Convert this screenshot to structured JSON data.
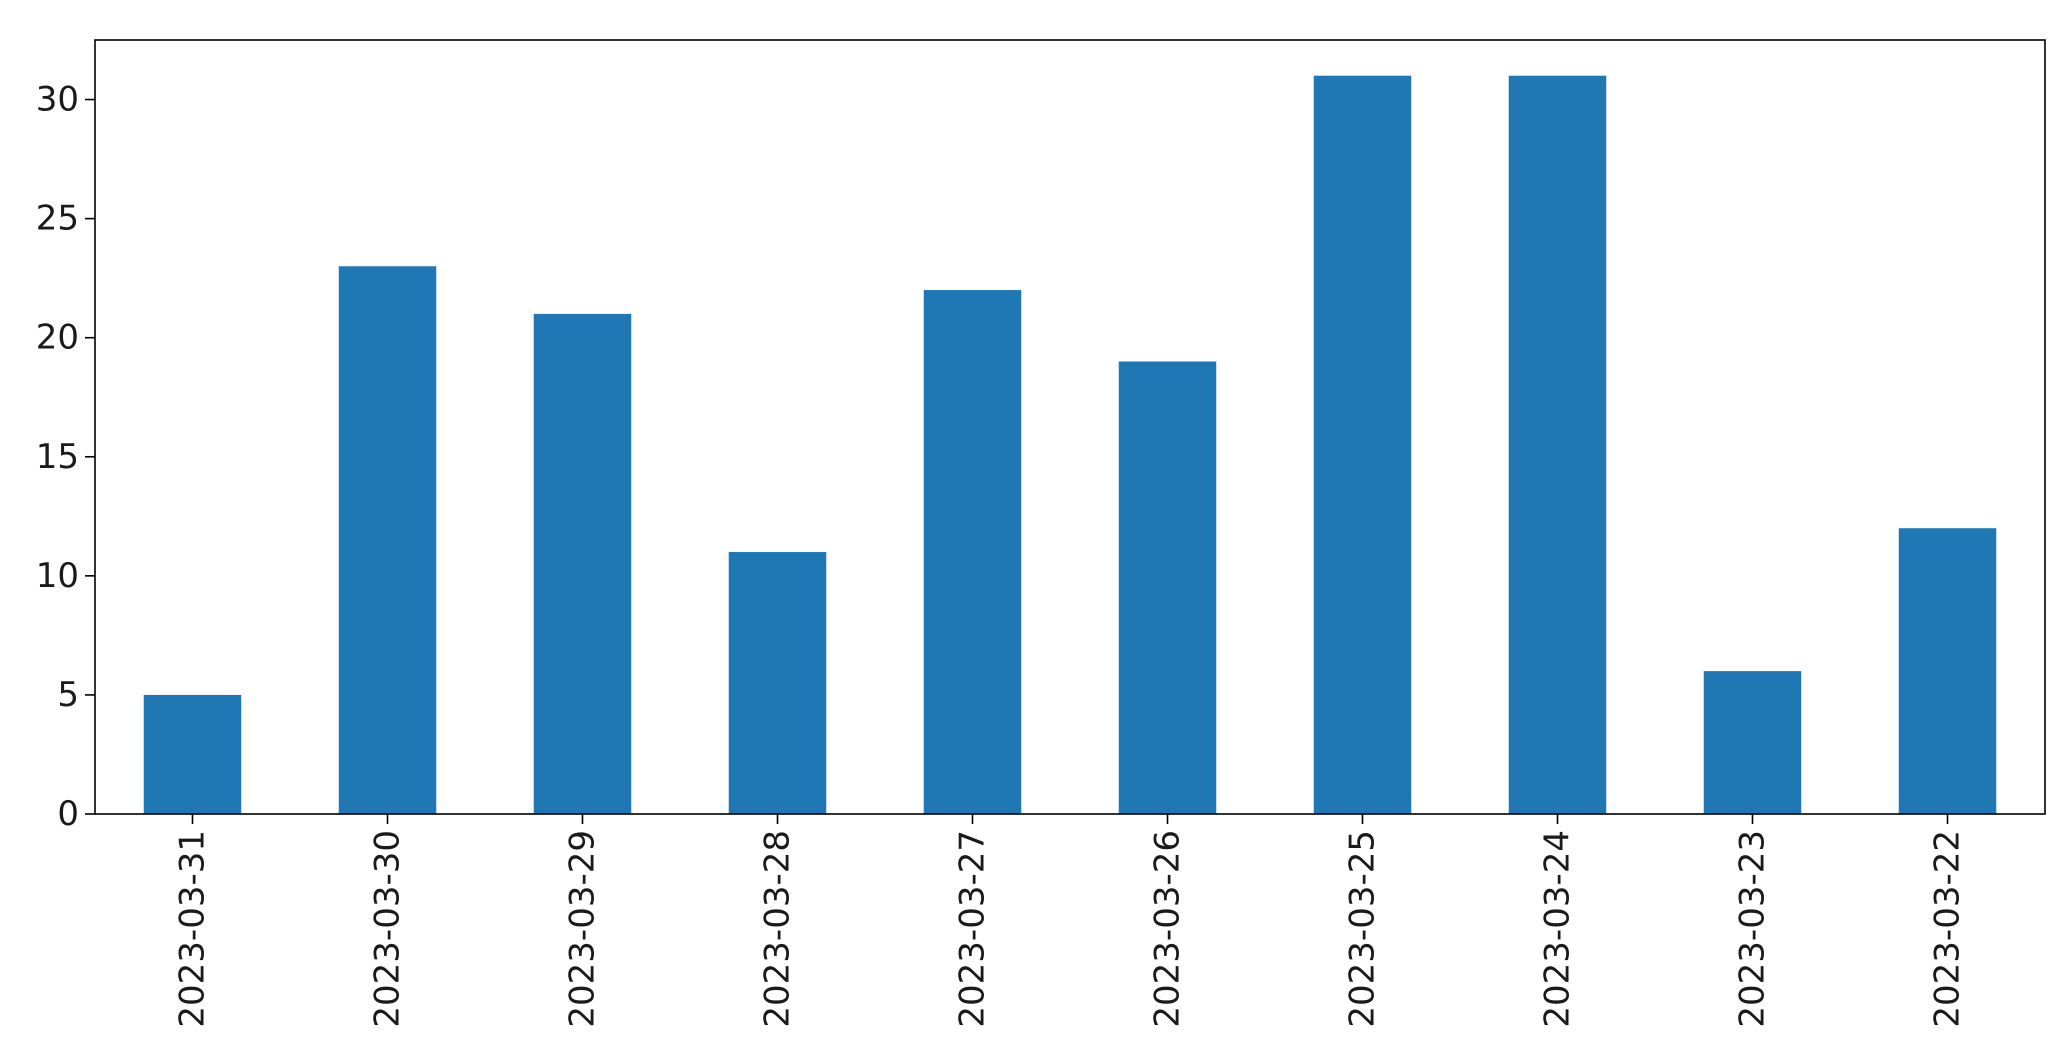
{
  "chart_data": {
    "type": "bar",
    "categories": [
      "2023-03-31",
      "2023-03-30",
      "2023-03-29",
      "2023-03-28",
      "2023-03-27",
      "2023-03-26",
      "2023-03-25",
      "2023-03-24",
      "2023-03-23",
      "2023-03-22"
    ],
    "values": [
      5,
      23,
      21,
      11,
      22,
      19,
      31,
      31,
      6,
      12
    ],
    "ylim": [
      0,
      32.5
    ],
    "yticks": [
      0,
      5,
      10,
      15,
      20,
      25,
      30
    ],
    "bar_color": "#1f77b4",
    "grid": false,
    "legend": false
  }
}
